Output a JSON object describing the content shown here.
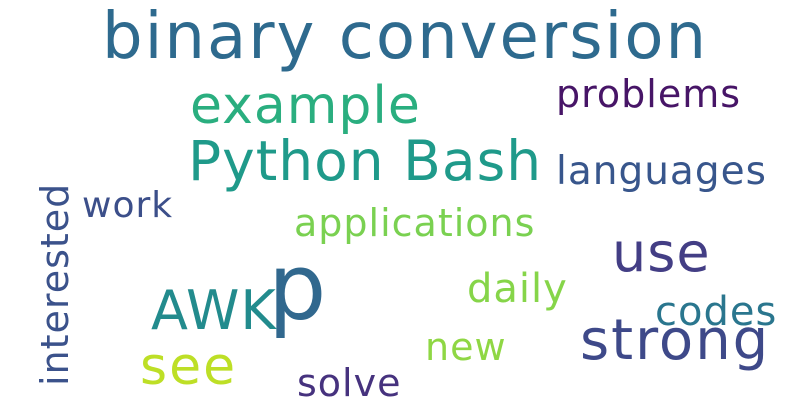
{
  "words": [
    {
      "id": "binary",
      "text": "binary conversion",
      "color": "#2e6a8e"
    },
    {
      "id": "example",
      "text": "example",
      "color": "#2aae7f"
    },
    {
      "id": "problems",
      "text": "problems",
      "color": "#471567"
    },
    {
      "id": "python_bash",
      "text": "Python Bash",
      "color": "#1f9a8a"
    },
    {
      "id": "languages",
      "text": "languages",
      "color": "#38568c"
    },
    {
      "id": "work",
      "text": "work",
      "color": "#3c4f8a"
    },
    {
      "id": "applications",
      "text": "applications",
      "color": "#7ad151"
    },
    {
      "id": "use",
      "text": "use",
      "color": "#433e85"
    },
    {
      "id": "p",
      "text": "p",
      "color": "#31688e"
    },
    {
      "id": "daily",
      "text": "daily",
      "color": "#86d549"
    },
    {
      "id": "awk",
      "text": "AWK",
      "color": "#228b8d"
    },
    {
      "id": "codes",
      "text": "codes",
      "color": "#2a768e"
    },
    {
      "id": "strong",
      "text": "strong",
      "color": "#3e4989"
    },
    {
      "id": "new",
      "text": "new",
      "color": "#8fd744"
    },
    {
      "id": "see",
      "text": "see",
      "color": "#bddf26"
    },
    {
      "id": "solve",
      "text": "solve",
      "color": "#46327e"
    },
    {
      "id": "interested",
      "text": "interested",
      "color": "#3b528b"
    }
  ]
}
